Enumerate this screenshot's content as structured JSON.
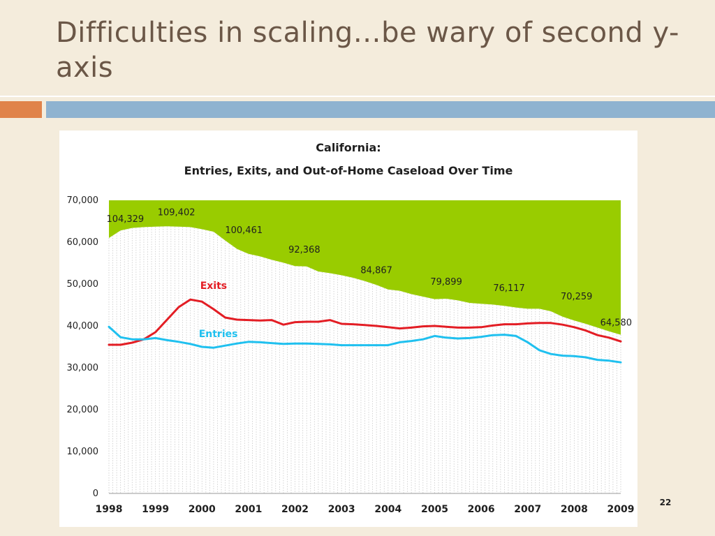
{
  "slide": {
    "title": "Difficulties in scaling…be wary of second y-axis",
    "page_number": "22"
  },
  "colors": {
    "title_text": "#6b5747",
    "accent_orange": "#e0834a",
    "accent_blue": "#8fb3d0",
    "caseload_fill": "#99cc00",
    "exits_line": "#e31d24",
    "entries_line": "#1fc0ef"
  },
  "chart_data": {
    "type": "line",
    "title_line1": "California:",
    "title_line2": "Entries, Exits, and Out-of-Home Caseload Over Time",
    "xlabel": "",
    "ylabel": "",
    "ylim": [
      0,
      70000
    ],
    "yticks": [
      "0",
      "10,000",
      "20,000",
      "30,000",
      "40,000",
      "50,000",
      "60,000",
      "70,000"
    ],
    "ytick_values": [
      0,
      10000,
      20000,
      30000,
      40000,
      50000,
      60000,
      70000
    ],
    "xlim": [
      1998,
      2009
    ],
    "xticks": [
      "1998",
      "1999",
      "2000",
      "2001",
      "2002",
      "2003",
      "2004",
      "2005",
      "2006",
      "2007",
      "2008",
      "2009"
    ],
    "xtick_values": [
      1998,
      1999,
      2000,
      2001,
      2002,
      2003,
      2004,
      2005,
      2006,
      2007,
      2008,
      2009
    ],
    "grid": "vertical dotted",
    "series": [
      {
        "name": "Exits",
        "color_key": "exits_line",
        "x": [
          1998,
          1998.25,
          1998.5,
          1998.75,
          1999,
          1999.25,
          1999.5,
          1999.75,
          2000,
          2000.25,
          2000.5,
          2000.75,
          2001,
          2001.25,
          2001.5,
          2001.75,
          2002,
          2002.25,
          2002.5,
          2002.75,
          2003,
          2003.25,
          2003.5,
          2003.75,
          2004,
          2004.25,
          2004.5,
          2004.75,
          2005,
          2005.25,
          2005.5,
          2005.75,
          2006,
          2006.25,
          2006.5,
          2006.75,
          2007,
          2007.25,
          2007.5,
          2007.75,
          2008,
          2008.25,
          2008.5,
          2008.75,
          2009
        ],
        "y": [
          35500,
          35500,
          36000,
          36800,
          38500,
          41500,
          44500,
          46300,
          45800,
          44000,
          42000,
          41500,
          41400,
          41300,
          41400,
          40300,
          40900,
          41000,
          41000,
          41400,
          40500,
          40400,
          40200,
          40000,
          39700,
          39400,
          39600,
          39900,
          40000,
          39800,
          39600,
          39600,
          39700,
          40100,
          40400,
          40400,
          40600,
          40700,
          40700,
          40300,
          39700,
          38900,
          37800,
          37200,
          36300
        ]
      },
      {
        "name": "Entries",
        "color_key": "entries_line",
        "x": [
          1998,
          1998.25,
          1998.5,
          1998.75,
          1999,
          1999.25,
          1999.5,
          1999.75,
          2000,
          2000.25,
          2000.5,
          2000.75,
          2001,
          2001.25,
          2001.5,
          2001.75,
          2002,
          2002.25,
          2002.5,
          2002.75,
          2003,
          2003.25,
          2003.5,
          2003.75,
          2004,
          2004.25,
          2004.5,
          2004.75,
          2005,
          2005.25,
          2005.5,
          2005.75,
          2006,
          2006.25,
          2006.5,
          2006.75,
          2007,
          2007.25,
          2007.5,
          2007.75,
          2008,
          2008.25,
          2008.5,
          2008.75,
          2009
        ],
        "y": [
          39800,
          37300,
          36800,
          36800,
          37100,
          36600,
          36200,
          35700,
          35000,
          34800,
          35300,
          35800,
          36200,
          36100,
          35900,
          35700,
          35800,
          35800,
          35700,
          35600,
          35400,
          35400,
          35400,
          35400,
          35400,
          36100,
          36400,
          36800,
          37600,
          37200,
          37000,
          37100,
          37400,
          37800,
          37900,
          37600,
          36100,
          34200,
          33300,
          32900,
          32800,
          32500,
          31900,
          31700,
          31300
        ]
      },
      {
        "name": "Out-of-Home Caseload",
        "color_key": "caseload_fill",
        "area_from_top": true,
        "x": [
          1998,
          1998.25,
          1998.5,
          1998.75,
          1999,
          1999.25,
          1999.5,
          1999.75,
          2000,
          2000.25,
          2000.5,
          2000.75,
          2001,
          2001.25,
          2001.5,
          2001.75,
          2002,
          2002.25,
          2002.5,
          2002.75,
          2003,
          2003.25,
          2003.5,
          2003.75,
          2004,
          2004.25,
          2004.5,
          2004.75,
          2005,
          2005.25,
          2005.5,
          2005.75,
          2006,
          2006.25,
          2006.5,
          2006.75,
          2007,
          2007.25,
          2007.5,
          2007.75,
          2008,
          2008.25,
          2008.5,
          2008.75,
          2009
        ],
        "y": [
          61000,
          62800,
          63400,
          63600,
          63700,
          63800,
          63700,
          63600,
          63100,
          62500,
          60400,
          58400,
          57200,
          56600,
          55800,
          55100,
          54300,
          54200,
          53000,
          52600,
          52100,
          51500,
          50700,
          49800,
          48700,
          48400,
          47600,
          47000,
          46400,
          46500,
          46100,
          45500,
          45300,
          45100,
          44800,
          44400,
          44100,
          44100,
          43500,
          42200,
          41300,
          40500,
          39600,
          38700,
          37900
        ]
      }
    ],
    "series_labels": [
      {
        "text": "Exits",
        "x": 2000.25,
        "y": 48800,
        "color_key": "exits_line"
      },
      {
        "text": "Entries",
        "x": 2000.35,
        "y": 37300,
        "color_key": "entries_line"
      }
    ],
    "annotations": [
      {
        "text": "104,329",
        "x": 1998.35,
        "y": 64800
      },
      {
        "text": "109,402",
        "x": 1999.45,
        "y": 66400
      },
      {
        "text": "100,461",
        "x": 2000.9,
        "y": 62200
      },
      {
        "text": "92,368",
        "x": 2002.2,
        "y": 57500
      },
      {
        "text": "84,867",
        "x": 2003.75,
        "y": 52600
      },
      {
        "text": "79,899",
        "x": 2005.25,
        "y": 49800
      },
      {
        "text": "76,117",
        "x": 2006.6,
        "y": 48300
      },
      {
        "text": "70,259",
        "x": 2008.05,
        "y": 46300
      },
      {
        "text": "64,580",
        "x": 2008.9,
        "y": 40100
      }
    ]
  }
}
